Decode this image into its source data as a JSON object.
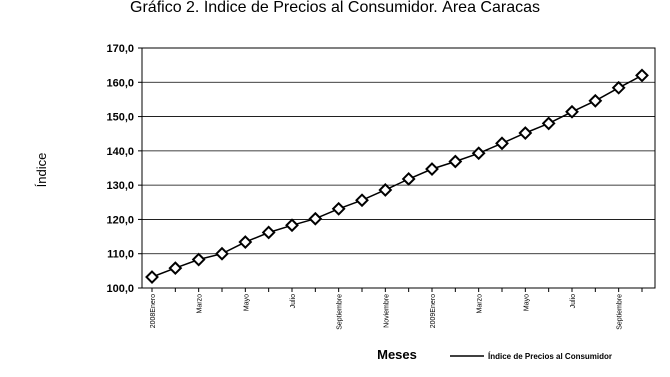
{
  "chart_data": {
    "type": "line",
    "title": "Gráfico 2. Índice de Precios al Consumidor. Área Caracas",
    "xlabel": "Meses",
    "ylabel": "Índice",
    "ylim": [
      100,
      170
    ],
    "yticks": [
      "100,0",
      "110,0",
      "120,0",
      "130,0",
      "140,0",
      "150,0",
      "160,0",
      "170,0"
    ],
    "grid": true,
    "legend": "bottom-right",
    "x_tick_labels": [
      "2008Enero",
      "",
      "Marzo",
      "",
      "Mayo",
      "",
      "Julio",
      "",
      "Septiembre",
      "",
      "Noviembre",
      "",
      "2009Enero",
      "",
      "Marzo",
      "",
      "Mayo",
      "",
      "Julio",
      "",
      "Septiembre",
      ""
    ],
    "series": [
      {
        "name": "Índice de Precios al Consumidor",
        "color": "#000000",
        "marker": "diamond",
        "values": [
          103.2,
          105.8,
          108.3,
          110.0,
          113.4,
          116.2,
          118.3,
          120.2,
          123.1,
          125.6,
          128.6,
          131.8,
          134.7,
          136.9,
          139.3,
          142.2,
          145.2,
          148.0,
          151.4,
          154.6,
          158.4,
          162.0
        ]
      }
    ]
  }
}
